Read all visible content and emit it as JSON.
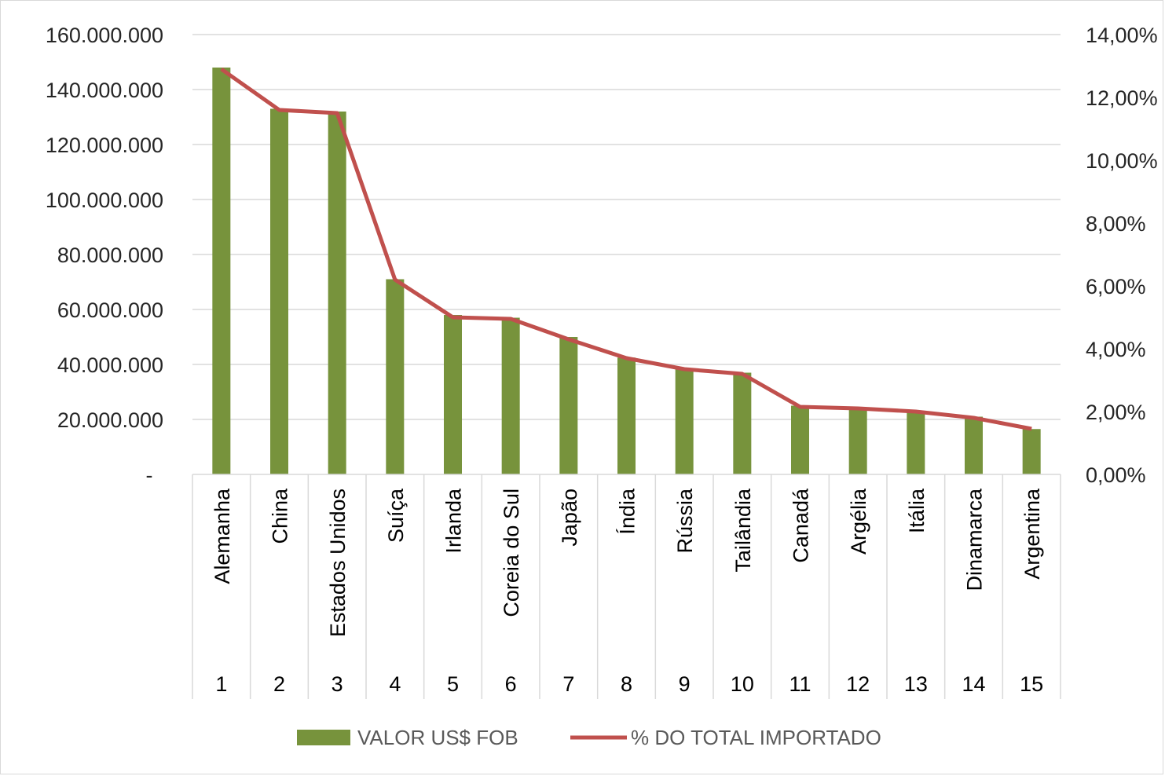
{
  "chart_data": {
    "type": "bar",
    "categories": [
      "1",
      "2",
      "3",
      "4",
      "5",
      "6",
      "7",
      "8",
      "9",
      "10",
      "11",
      "12",
      "13",
      "14",
      "15"
    ],
    "countries": [
      "Alemanha",
      "China",
      "Estados Unidos",
      "Suíça",
      "Irlanda",
      "Coreia do Sul",
      "Japão",
      "Índia",
      "Rússia",
      "Tailândia",
      "Canadá",
      "Argélia",
      "Itália",
      "Dinamarca",
      "Argentina"
    ],
    "series": [
      {
        "name": "VALOR US$ FOB",
        "type": "bar",
        "axis": "left",
        "color": "#77933c",
        "values": [
          148000000,
          133000000,
          132000000,
          71000000,
          58000000,
          57000000,
          50000000,
          42500000,
          38500000,
          37000000,
          25000000,
          24000000,
          23000000,
          21000000,
          16500000
        ]
      },
      {
        "name": "% DO TOTAL IMPORTADO",
        "type": "line",
        "axis": "right",
        "color": "#c0504d",
        "values": [
          12.9,
          11.6,
          11.5,
          6.2,
          5.0,
          4.95,
          4.3,
          3.7,
          3.35,
          3.2,
          2.15,
          2.1,
          2.0,
          1.8,
          1.45
        ]
      }
    ],
    "left_axis": {
      "min": 0,
      "max": 160000000,
      "ticks": [
        "-",
        "20.000.000",
        "40.000.000",
        "60.000.000",
        "80.000.000",
        "100.000.000",
        "120.000.000",
        "140.000.000",
        "160.000.000"
      ]
    },
    "right_axis": {
      "min": 0,
      "max": 14,
      "ticks": [
        "0,00%",
        "2,00%",
        "4,00%",
        "6,00%",
        "8,00%",
        "10,00%",
        "12,00%",
        "14,00%"
      ]
    },
    "grid": true,
    "legend": "bottom"
  }
}
